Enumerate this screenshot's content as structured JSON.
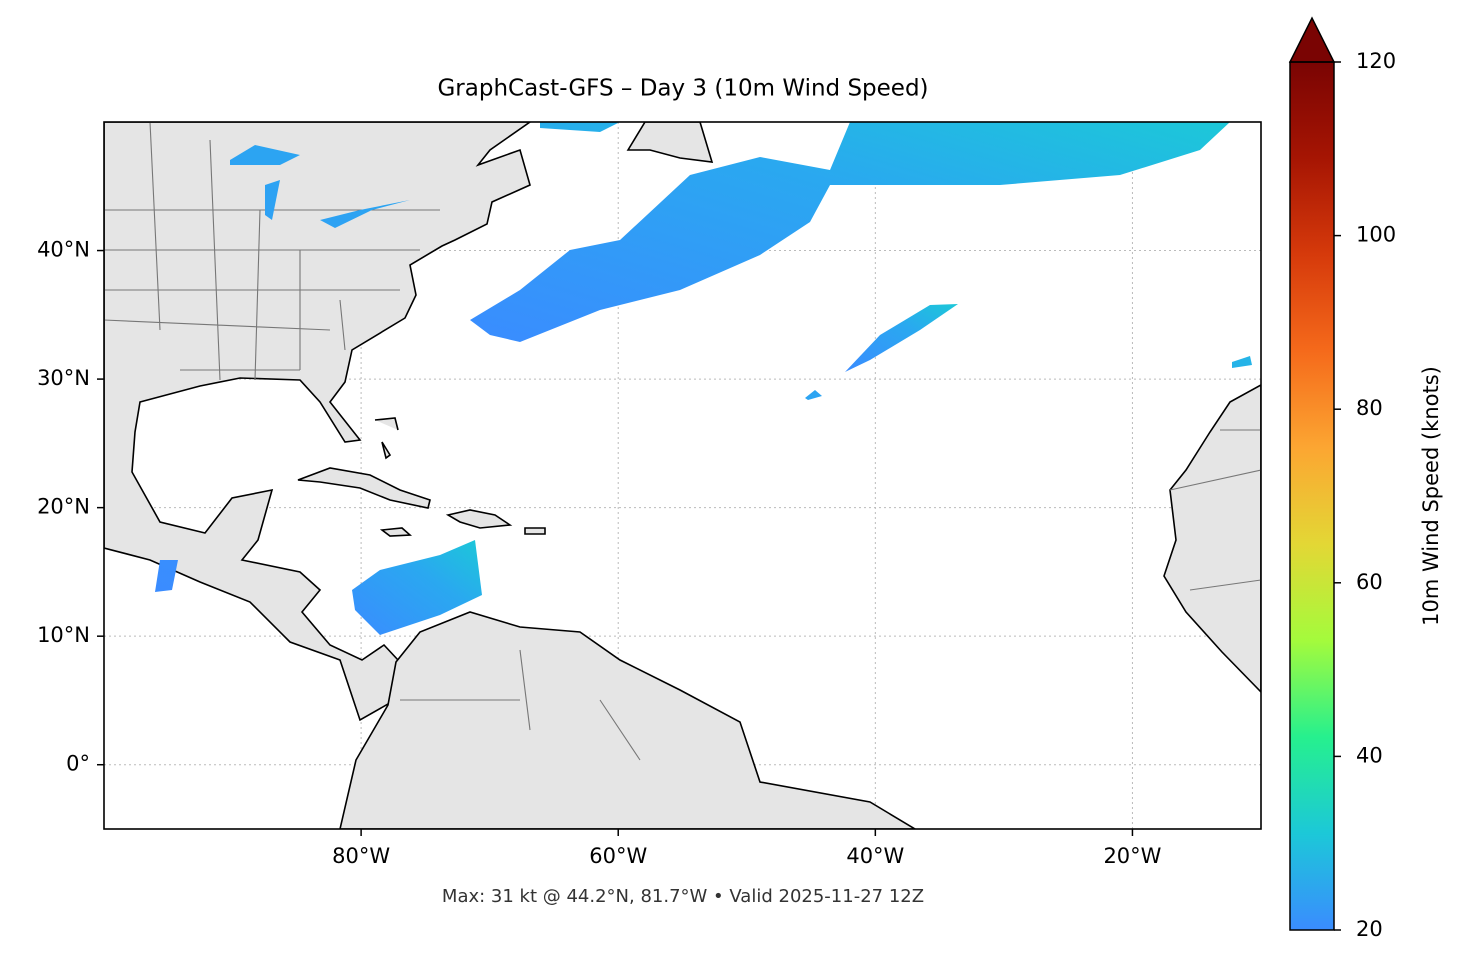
{
  "chart_data": {
    "type": "map",
    "title": "GraphCast-GFS – Day 3 (10m Wind Speed)",
    "xlim": [
      -100,
      -10
    ],
    "ylim": [
      -5,
      50
    ],
    "xticks": [
      {
        "value": -80,
        "label": "80°W"
      },
      {
        "value": -60,
        "label": "60°W"
      },
      {
        "value": -40,
        "label": "40°W"
      },
      {
        "value": -20,
        "label": "20°W"
      }
    ],
    "yticks": [
      {
        "value": 0,
        "label": "0°"
      },
      {
        "value": 10,
        "label": "10°N"
      },
      {
        "value": 20,
        "label": "20°N"
      },
      {
        "value": 30,
        "label": "30°N"
      },
      {
        "value": 40,
        "label": "40°N"
      }
    ],
    "grid": true,
    "colorbar": {
      "label": "10m Wind Speed (knots)",
      "lim": [
        20,
        120
      ],
      "ticks": [
        20,
        40,
        60,
        80,
        100,
        120
      ],
      "colors": [
        "#3a8cff",
        "#1cc8d8",
        "#26f08e",
        "#a4fb3c",
        "#e3d735",
        "#fca632",
        "#f56a1b",
        "#d63a0b",
        "#a61503",
        "#7a0403"
      ]
    },
    "note": "Max: 31 kt @ 44.2°N, 81.7°W • Valid 2025-11-27 12Z"
  }
}
